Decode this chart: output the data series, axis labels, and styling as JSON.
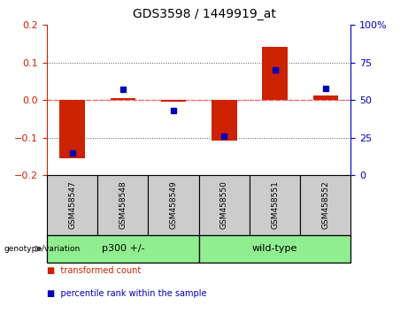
{
  "title": "GDS3598 / 1449919_at",
  "samples": [
    "GSM458547",
    "GSM458548",
    "GSM458549",
    "GSM458550",
    "GSM458551",
    "GSM458552"
  ],
  "transformed_count": [
    -0.155,
    0.005,
    -0.005,
    -0.108,
    0.143,
    0.012
  ],
  "percentile_rank": [
    15,
    57,
    43,
    26,
    70,
    58
  ],
  "left_ylim": [
    -0.2,
    0.2
  ],
  "right_ylim": [
    0,
    100
  ],
  "left_yticks": [
    -0.2,
    -0.1,
    0.0,
    0.1,
    0.2
  ],
  "right_yticks": [
    0,
    25,
    50,
    75,
    100
  ],
  "right_yticklabels": [
    "0",
    "25",
    "50",
    "75",
    "100%"
  ],
  "dotted_yvals": [
    -0.1,
    0.1
  ],
  "zero_line_val": 0.0,
  "groups": [
    {
      "label": "p300 +/-",
      "sample_indices": [
        0,
        1,
        2
      ],
      "color": "#90EE90"
    },
    {
      "label": "wild-type",
      "sample_indices": [
        3,
        4,
        5
      ],
      "color": "#90EE90"
    }
  ],
  "group_label_prefix": "genotype/variation",
  "bar_color": "#CC2200",
  "marker_color": "#0000BB",
  "zero_line_color": "#FF6666",
  "dotted_line_color": "#555555",
  "sample_box_color": "#CCCCCC",
  "tick_color_left": "#CC2200",
  "tick_color_right": "#0000BB",
  "bar_width": 0.5,
  "legend_items": [
    {
      "label": "transformed count",
      "color": "#CC2200"
    },
    {
      "label": "percentile rank within the sample",
      "color": "#0000BB"
    }
  ],
  "title_fontsize": 10,
  "tick_fontsize": 8,
  "legend_fontsize": 7,
  "sample_fontsize": 6.5,
  "group_fontsize": 8
}
